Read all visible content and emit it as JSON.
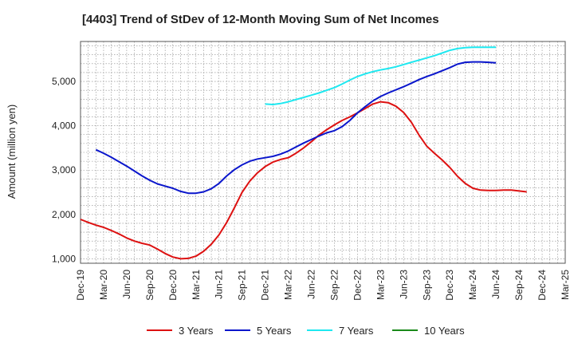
{
  "chart_data": {
    "type": "line",
    "title": "[4403]  Trend of StDev of 12-Month Moving Sum of Net Incomes",
    "ylabel": "Amount (million yen)",
    "xlabel": "",
    "ylim": [
      900,
      5900
    ],
    "yticks": [
      1000,
      2000,
      3000,
      4000,
      5000
    ],
    "ytick_labels": [
      "1,000",
      "2,000",
      "3,000",
      "4,000",
      "5,000"
    ],
    "x_tick_labels": [
      "Dec-19",
      "Mar-20",
      "Jun-20",
      "Sep-20",
      "Dec-20",
      "Mar-21",
      "Jun-21",
      "Sep-21",
      "Dec-21",
      "Mar-22",
      "Jun-22",
      "Sep-22",
      "Dec-22",
      "Mar-23",
      "Jun-23",
      "Sep-23",
      "Dec-23",
      "Mar-24",
      "Jun-24",
      "Sep-24",
      "Dec-24",
      "Mar-25"
    ],
    "grid": true,
    "legend_position": "bottom",
    "x_months": [
      0,
      1,
      2,
      3,
      4,
      5,
      6,
      7,
      8,
      9,
      10,
      11,
      12,
      13,
      14,
      15,
      16,
      17,
      18,
      19,
      20,
      21,
      22,
      23,
      24,
      25,
      26,
      27,
      28,
      29,
      30,
      31,
      32,
      33,
      34,
      35,
      36,
      37,
      38,
      39,
      40,
      41,
      42,
      43,
      44,
      45,
      46,
      47,
      48,
      49,
      50,
      51,
      52,
      53,
      54,
      55,
      56,
      57,
      58,
      59,
      60
    ],
    "series": [
      {
        "name": "3 Years",
        "color": "#dd1111",
        "values": [
          1890,
          1820,
          1760,
          1710,
          1640,
          1560,
          1470,
          1400,
          1350,
          1310,
          1220,
          1120,
          1040,
          1000,
          1010,
          1060,
          1170,
          1330,
          1540,
          1820,
          2150,
          2500,
          2750,
          2940,
          3080,
          3180,
          3240,
          3280,
          3380,
          3500,
          3640,
          3790,
          3910,
          4020,
          4120,
          4200,
          4290,
          4390,
          4490,
          4540,
          4520,
          4440,
          4300,
          4080,
          3790,
          3540,
          3380,
          3230,
          3060,
          2860,
          2700,
          2590,
          2550,
          2540,
          2540,
          2550,
          2550,
          2530,
          2510,
          null,
          null
        ]
      },
      {
        "name": "5 Years",
        "color": "#0a16cc",
        "values": [
          null,
          null,
          3460,
          3380,
          3290,
          3190,
          3090,
          2980,
          2870,
          2770,
          2690,
          2640,
          2590,
          2520,
          2480,
          2480,
          2510,
          2580,
          2700,
          2870,
          3010,
          3120,
          3200,
          3250,
          3280,
          3310,
          3360,
          3430,
          3520,
          3610,
          3690,
          3770,
          3840,
          3890,
          3980,
          4120,
          4290,
          4430,
          4560,
          4660,
          4740,
          4810,
          4880,
          4960,
          5040,
          5110,
          5170,
          5240,
          5310,
          5390,
          5430,
          5440,
          5440,
          5430,
          5420,
          null,
          null,
          null,
          null,
          null,
          null
        ]
      },
      {
        "name": "7 Years",
        "color": "#1ee8f0",
        "values": [
          null,
          null,
          null,
          null,
          null,
          null,
          null,
          null,
          null,
          null,
          null,
          null,
          null,
          null,
          null,
          null,
          null,
          null,
          null,
          null,
          null,
          null,
          null,
          null,
          4490,
          4480,
          4500,
          4540,
          4590,
          4640,
          4690,
          4740,
          4800,
          4860,
          4940,
          5030,
          5110,
          5170,
          5220,
          5260,
          5290,
          5330,
          5380,
          5430,
          5480,
          5530,
          5580,
          5640,
          5700,
          5740,
          5760,
          5770,
          5770,
          5770,
          5770,
          null,
          null,
          null,
          null,
          null,
          null
        ]
      },
      {
        "name": "10 Years",
        "color": "#1a8a1a",
        "values": []
      }
    ]
  }
}
